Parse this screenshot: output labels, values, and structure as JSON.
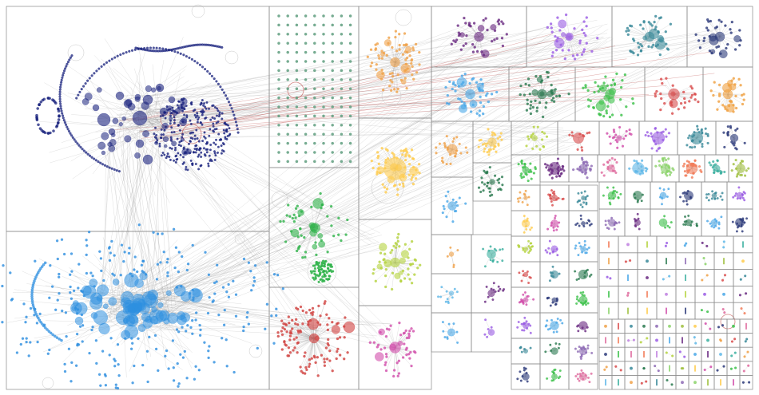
{
  "diagram": {
    "type": "network-graph",
    "layout": "group-in-a-box",
    "background": "#ffffff",
    "frame_color": "#8c8c8c",
    "edge_color": "#9a9a9a",
    "highlight_edge_color": "#c0504d",
    "groups": [
      {
        "id": "G1",
        "color": "#1a237e",
        "structure": "hub-cluster"
      },
      {
        "id": "G2",
        "color": "#2e8fe0",
        "structure": "hub-cluster"
      },
      {
        "id": "G3",
        "color": "#5f9e7f",
        "structure": "grid-isolates"
      },
      {
        "id": "G4",
        "color": "#f0a24a",
        "structure": "star"
      },
      {
        "id": "G5",
        "color": "#ffcc4d",
        "structure": "star"
      },
      {
        "id": "G6",
        "color": "#2fb34a",
        "structure": "star"
      },
      {
        "id": "G7",
        "color": "#b5d33f",
        "structure": "star"
      },
      {
        "id": "G8",
        "color": "#d1413f",
        "structure": "star"
      },
      {
        "id": "G9",
        "color": "#d24fab",
        "structure": "star"
      },
      {
        "id": "G10",
        "color": "#6a2a82",
        "structure": "star"
      },
      {
        "id": "G11",
        "color": "#9b5de5",
        "structure": "star"
      },
      {
        "id": "G12",
        "color": "#3a8a9a",
        "structure": "star"
      },
      {
        "id": "G13",
        "color": "#2c3a7a",
        "structure": "star"
      },
      {
        "id": "G14",
        "color": "#4aa8e8",
        "structure": "star"
      },
      {
        "id": "G15",
        "color": "#2a7a50",
        "structure": "star"
      },
      {
        "id": "G16",
        "color": "#3cc24a",
        "structure": "star"
      },
      {
        "id": "G17",
        "color": "#d94c4c",
        "structure": "star"
      },
      {
        "id": "G18",
        "color": "#f0a040",
        "structure": "star"
      }
    ],
    "small_group_palette": [
      "#f0a24a",
      "#ffcc4d",
      "#b5d33f",
      "#d94c4c",
      "#d24fab",
      "#9b5de5",
      "#3a8a9a",
      "#2c3a7a",
      "#4aa8e8",
      "#2a7a50",
      "#3cc24a",
      "#6a2a82",
      "#8e6bb5",
      "#e06c9f",
      "#5fb8e8",
      "#8bd36a",
      "#f27d5a",
      "#3cb0a0",
      "#a0c040",
      "#c080e0"
    ]
  }
}
